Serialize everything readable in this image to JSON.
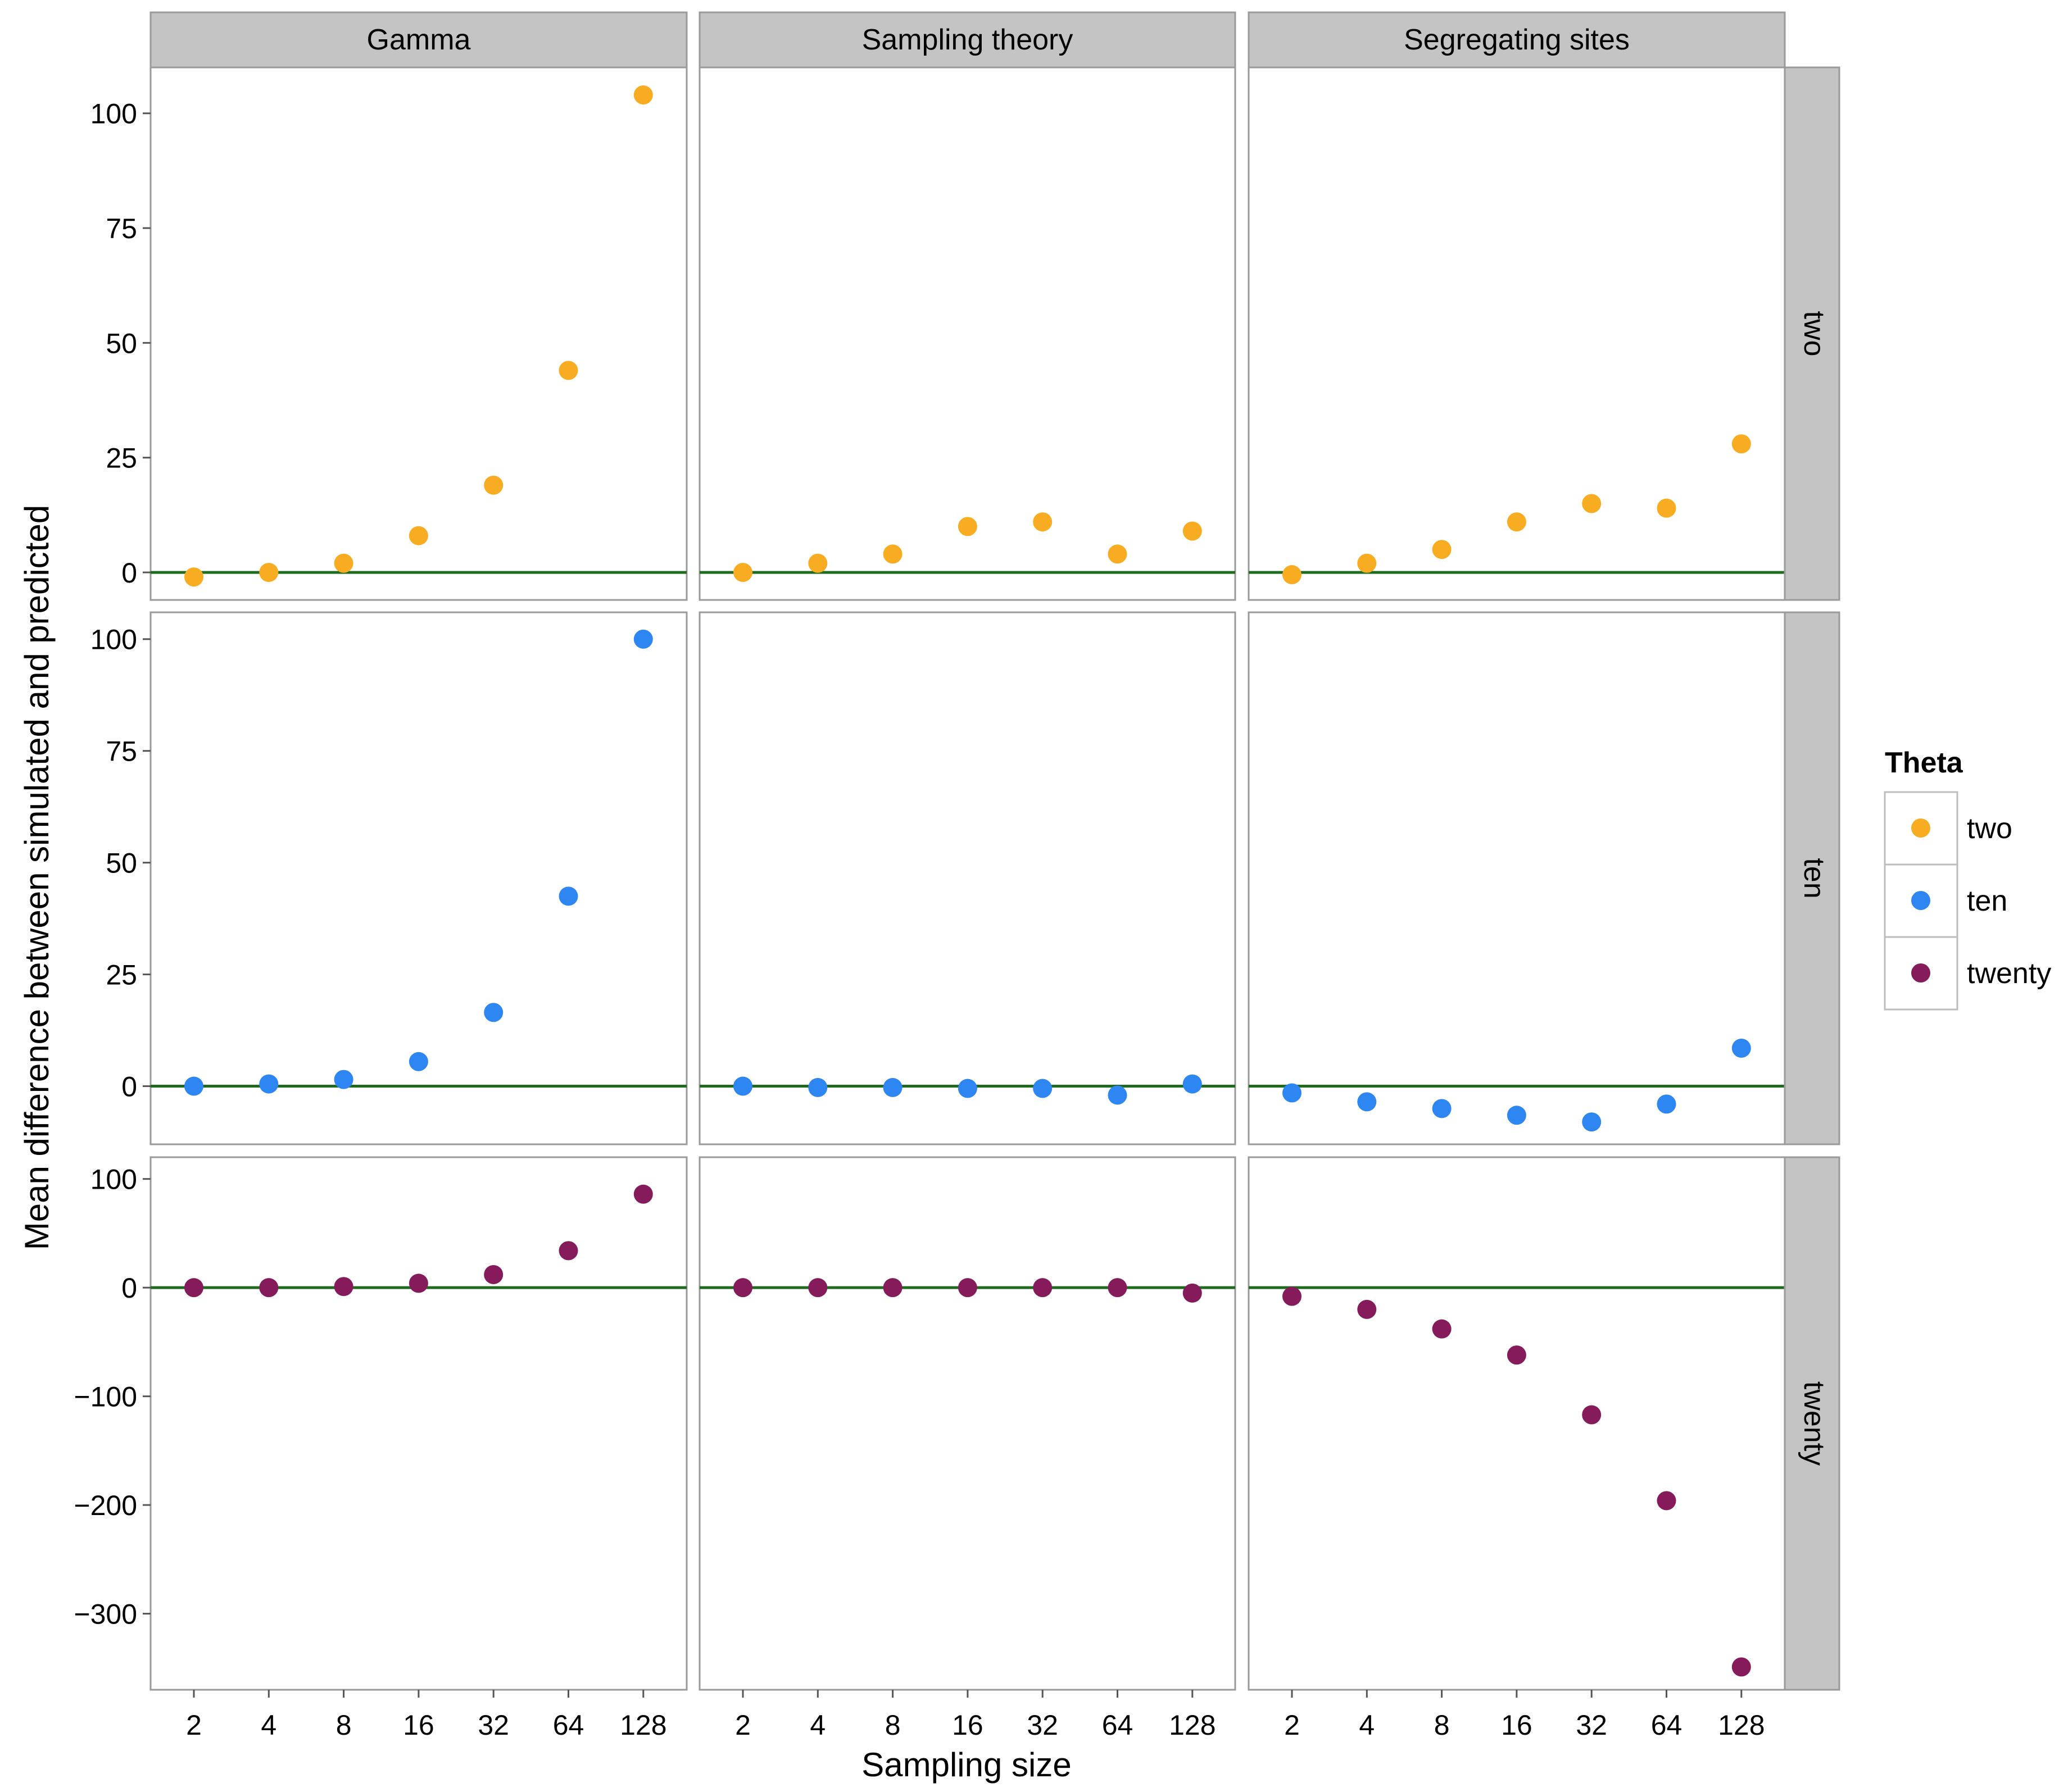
{
  "chart_data": {
    "type": "scatter",
    "layout": "facet-grid",
    "xlabel": "Sampling size",
    "ylabel": "Mean difference between simulated and predicted",
    "x_categories": [
      "2",
      "4",
      "8",
      "16",
      "32",
      "64",
      "128"
    ],
    "columns": [
      "Gamma",
      "Sampling theory",
      "Segregating sites"
    ],
    "rows": [
      {
        "name": "two",
        "ylim": [
          -6,
          110
        ],
        "yticks": [
          0,
          25,
          50,
          75,
          100
        ]
      },
      {
        "name": "ten",
        "ylim": [
          -13,
          106
        ],
        "yticks": [
          0,
          25,
          50,
          75,
          100
        ]
      },
      {
        "name": "twenty",
        "ylim": [
          -370,
          120
        ],
        "yticks": [
          -300,
          -200,
          -100,
          0,
          100
        ]
      }
    ],
    "reference_line": {
      "y": 0,
      "color": "#1e6b1e"
    },
    "legend": {
      "title": "Theta",
      "entries": [
        {
          "label": "two",
          "color": "#F7AC22"
        },
        {
          "label": "ten",
          "color": "#2E86F2"
        },
        {
          "label": "twenty",
          "color": "#861B5B"
        }
      ]
    },
    "series": [
      {
        "column": "Gamma",
        "row": "two",
        "values": [
          -1,
          0,
          2,
          8,
          19,
          44,
          104
        ]
      },
      {
        "column": "Sampling theory",
        "row": "two",
        "values": [
          0,
          2,
          4,
          10,
          11,
          4,
          9
        ]
      },
      {
        "column": "Segregating sites",
        "row": "two",
        "values": [
          -0.5,
          2,
          5,
          11,
          15,
          14,
          28
        ]
      },
      {
        "column": "Gamma",
        "row": "ten",
        "values": [
          0,
          0.5,
          1.5,
          5.5,
          16.5,
          42.5,
          100
        ]
      },
      {
        "column": "Sampling theory",
        "row": "ten",
        "values": [
          0,
          -0.3,
          -0.3,
          -0.5,
          -0.5,
          -2,
          0.5
        ]
      },
      {
        "column": "Segregating sites",
        "row": "ten",
        "values": [
          -1.5,
          -3.5,
          -5,
          -6.5,
          -8,
          -4,
          8.5
        ]
      },
      {
        "column": "Gamma",
        "row": "twenty",
        "values": [
          0,
          0,
          1,
          4,
          12,
          34,
          86
        ]
      },
      {
        "column": "Sampling theory",
        "row": "twenty",
        "values": [
          0,
          0,
          0,
          0,
          0,
          0,
          -5
        ]
      },
      {
        "column": "Segregating sites",
        "row": "twenty",
        "values": [
          -8,
          -20,
          -38,
          -62,
          -117,
          -196,
          -349
        ]
      }
    ]
  }
}
